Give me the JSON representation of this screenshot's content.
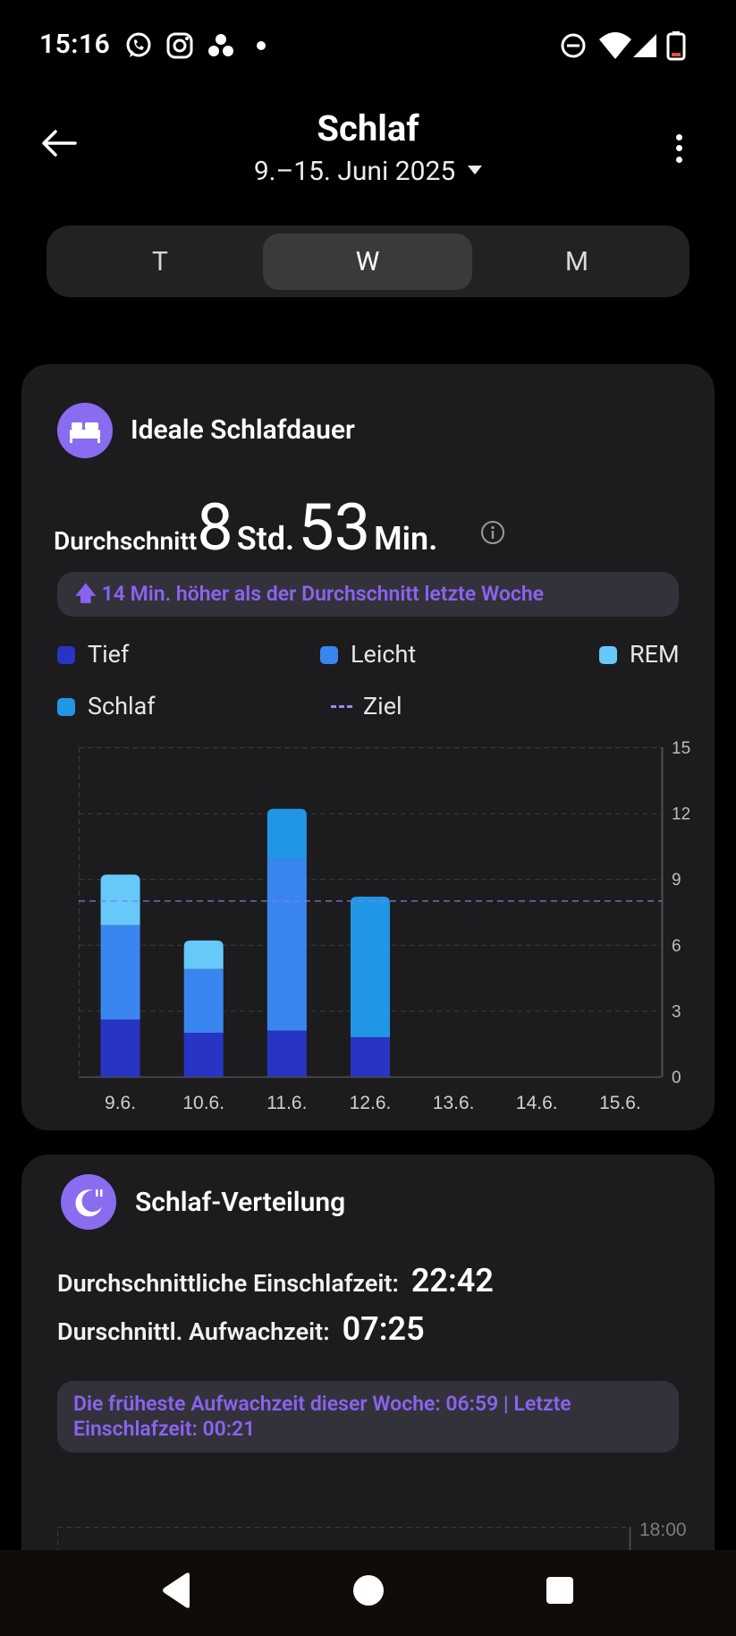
{
  "status_bar": {
    "time": "15:16",
    "icons": [
      "whatsapp-icon",
      "instagram-icon",
      "app-dots-icon",
      "dot-icon",
      "dnd-icon",
      "wifi-icon",
      "signal-icon",
      "battery-icon"
    ]
  },
  "header": {
    "title": "Schlaf",
    "date_range": "9.–15. Juni 2025"
  },
  "segments": {
    "items": [
      "T",
      "W",
      "M"
    ],
    "selected": "W"
  },
  "duration_card": {
    "title": "Ideale Schlafdauer",
    "avg_label": "Durchschnitt",
    "hours": "8",
    "hours_unit": "Std.",
    "minutes": "53",
    "minutes_unit": "Min.",
    "comparison": "14 Min. höher als der Durchschnitt letzte Woche",
    "legend": {
      "tief": "Tief",
      "leicht": "Leicht",
      "rem": "REM",
      "schlaf": "Schlaf",
      "ziel": "Ziel"
    }
  },
  "colors": {
    "tief": "#2834c4",
    "leicht": "#3a86f0",
    "rem": "#67c8fa",
    "schlaf": "#2196e6",
    "ziel": "#8080e6",
    "accent": "#8a63f0"
  },
  "chart_data": {
    "type": "bar",
    "stacked": true,
    "categories": [
      "9.6.",
      "10.6.",
      "11.6.",
      "12.6.",
      "13.6.",
      "14.6.",
      "15.6."
    ],
    "series": [
      {
        "name": "Tief",
        "values": [
          2.6,
          2.0,
          2.1,
          1.8,
          0,
          0,
          0
        ]
      },
      {
        "name": "Leicht",
        "values": [
          4.3,
          2.9,
          7.8,
          0,
          0,
          0,
          0
        ]
      },
      {
        "name": "REM",
        "values": [
          2.3,
          1.3,
          0,
          0,
          0,
          0,
          0
        ]
      },
      {
        "name": "Schlaf",
        "values": [
          0,
          0,
          2.3,
          6.4,
          0,
          0,
          0
        ]
      }
    ],
    "goal": 8,
    "ylim": [
      0,
      15
    ],
    "yticks": [
      "0",
      "3",
      "6",
      "9",
      "12",
      "15"
    ],
    "grid": true
  },
  "distribution_card": {
    "title": "Schlaf-Verteilung",
    "fall_asleep_label": "Durchschnittliche Einschlafzeit:",
    "fall_asleep_value": "22:42",
    "wake_label": "Durschnittl. Aufwachzeit:",
    "wake_value": "07:25",
    "note": "Die früheste Aufwachzeit dieser Woche: 06:59 | Letzte Einschlafzeit: 00:21",
    "chart_top_label": "18:00"
  },
  "nav_bar": {
    "buttons": [
      "back-nav-icon",
      "home-nav-icon",
      "recents-nav-icon"
    ]
  }
}
